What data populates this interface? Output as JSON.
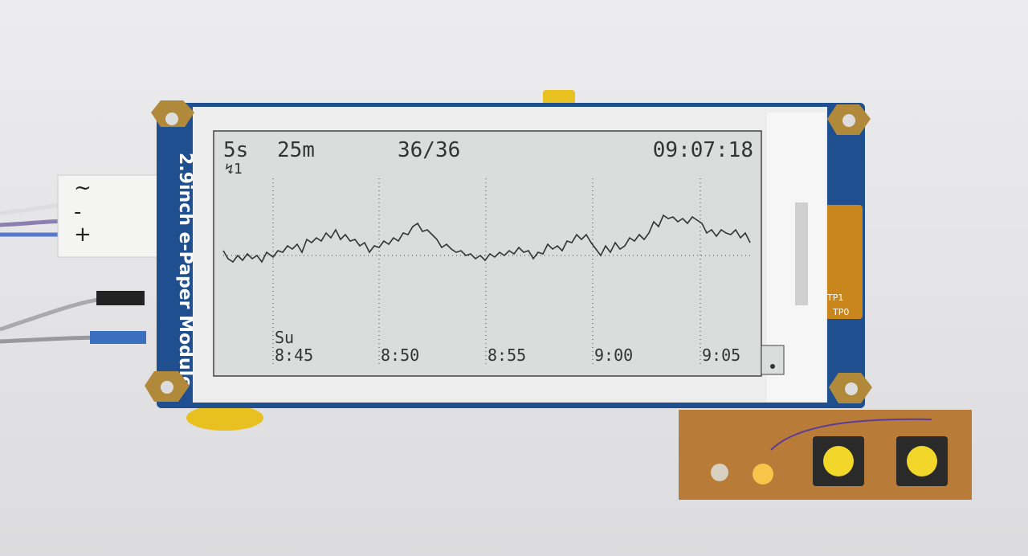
{
  "module": {
    "label": "2.9inch e-Paper Module",
    "pads": [
      "TP1",
      "TP0"
    ],
    "connector": [
      "~",
      "-",
      "+"
    ]
  },
  "screen": {
    "header": [
      "5s",
      "25m",
      "36/36",
      "09:07:18"
    ],
    "status": "↯1",
    "day": "Su",
    "x_labels": [
      "8:45",
      "8:50",
      "8:55",
      "9:00",
      "9:05"
    ]
  }
}
